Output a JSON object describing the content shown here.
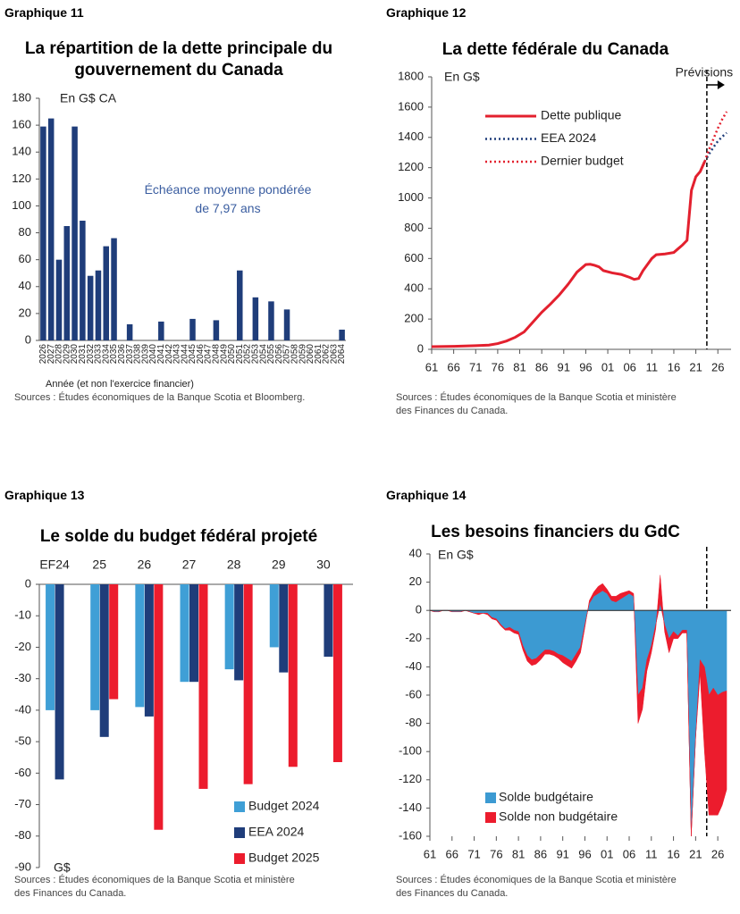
{
  "chart_data": [
    {
      "type": "bar",
      "label": "Graphique 11",
      "title": "La répartition de la dette principale du gouvernement du Canada",
      "unit": "En G$ CA",
      "annotation": "Échéance moyenne pondérée de 7,97 ans",
      "x_label": "Année (et non l'exercice financier)",
      "source": "Sources : Études économiques de la Banque Scotia et Bloomberg.",
      "categories": [
        "2026",
        "2027",
        "2028",
        "2029",
        "2030",
        "2031",
        "2032",
        "2033",
        "2034",
        "2035",
        "2036",
        "2037",
        "2038",
        "2039",
        "2040",
        "2041",
        "2042",
        "2043",
        "2044",
        "2045",
        "2046",
        "2047",
        "2048",
        "2049",
        "2050",
        "2051",
        "2052",
        "2053",
        "2054",
        "2055",
        "2056",
        "2057",
        "2058",
        "2059",
        "2060",
        "2061",
        "2062",
        "2063",
        "2064"
      ],
      "values": [
        159,
        165,
        60,
        85,
        159,
        89,
        48,
        52,
        70,
        76,
        0,
        12,
        0,
        0,
        0,
        14,
        0,
        0,
        0,
        16,
        0,
        0,
        15,
        0,
        0,
        52,
        0,
        32,
        0,
        29,
        0,
        23,
        0,
        0,
        0,
        0,
        0,
        0,
        8
      ],
      "color": "#1f3d7a",
      "ylim": [
        0,
        180
      ],
      "yticks": [
        0,
        20,
        40,
        60,
        80,
        100,
        120,
        140,
        160,
        180
      ]
    },
    {
      "type": "line",
      "label": "Graphique 12",
      "title": "La dette fédérale du Canada",
      "unit": "En G$",
      "source": "Sources : Études économiques de la Banque Scotia et ministère des Finances du Canada.",
      "forecast": {
        "x": 2023.5,
        "label": "Prévisions"
      },
      "legend": "upper left",
      "series": [
        {
          "name": "Dette publique",
          "color": "#e3202e",
          "style": "solid",
          "x": [
            1961,
            1966,
            1971,
            1974,
            1976,
            1978,
            1980,
            1982,
            1984,
            1986,
            1988,
            1990,
            1992,
            1994,
            1996,
            1997,
            1998,
            1999,
            2000,
            2002,
            2004,
            2006,
            2007,
            2008,
            2009,
            2010,
            2011,
            2012,
            2014,
            2016,
            2017,
            2018,
            2019,
            2020,
            2021,
            2022,
            2023
          ],
          "values": [
            18,
            20,
            24,
            28,
            38,
            55,
            80,
            115,
            180,
            245,
            300,
            360,
            430,
            510,
            560,
            562,
            555,
            545,
            520,
            505,
            495,
            475,
            462,
            468,
            520,
            560,
            600,
            625,
            630,
            640,
            665,
            690,
            720,
            1050,
            1140,
            1175,
            1240
          ]
        },
        {
          "name": "EEA 2024",
          "color": "#1f3d7a",
          "style": "dotted",
          "x": [
            2023,
            2024,
            2025,
            2026,
            2027,
            2028
          ],
          "values": [
            1240,
            1290,
            1335,
            1375,
            1405,
            1430
          ]
        },
        {
          "name": "Dernier budget",
          "color": "#e3202e",
          "style": "dotted",
          "x": [
            2023,
            2024,
            2025,
            2026,
            2027,
            2028
          ],
          "values": [
            1240,
            1320,
            1390,
            1460,
            1520,
            1570
          ]
        }
      ],
      "xlim": [
        1961,
        2029
      ],
      "xticks": [
        {
          "value": 1961,
          "label": "61"
        },
        {
          "value": 1966,
          "label": "66"
        },
        {
          "value": 1971,
          "label": "71"
        },
        {
          "value": 1976,
          "label": "76"
        },
        {
          "value": 1981,
          "label": "81"
        },
        {
          "value": 1986,
          "label": "86"
        },
        {
          "value": 1991,
          "label": "91"
        },
        {
          "value": 1996,
          "label": "96"
        },
        {
          "value": 2001,
          "label": "01"
        },
        {
          "value": 2006,
          "label": "06"
        },
        {
          "value": 2011,
          "label": "11"
        },
        {
          "value": 2016,
          "label": "16"
        },
        {
          "value": 2021,
          "label": "21"
        },
        {
          "value": 2026,
          "label": "26"
        }
      ],
      "ylim": [
        0,
        1800
      ],
      "yticks": [
        0,
        200,
        400,
        600,
        800,
        1000,
        1200,
        1400,
        1600,
        1800
      ]
    },
    {
      "type": "bar",
      "label": "Graphique 13",
      "title": "Le solde du budget fédéral projeté",
      "unit": "G$",
      "source": "Sources : Études économiques de la Banque Scotia et ministère des Finances du Canada.",
      "legend": "lower right",
      "categories": [
        "EF24",
        "25",
        "26",
        "27",
        "28",
        "29",
        "30"
      ],
      "series": [
        {
          "name": "Budget 2024",
          "color": "#3f9fd6",
          "values": [
            -40,
            -40,
            -39,
            -31,
            -27,
            -20,
            null
          ]
        },
        {
          "name": "EEA 2024",
          "color": "#1f3d7a",
          "values": [
            -62,
            -48.5,
            -42,
            -31,
            -30.5,
            -28,
            -23
          ]
        },
        {
          "name": "Budget 2025",
          "color": "#ec1c2d",
          "values": [
            null,
            -36.5,
            -78,
            -65,
            -63.5,
            -58,
            -56.5
          ]
        }
      ],
      "ylim": [
        -90,
        0
      ],
      "yticks": [
        0,
        -10,
        -20,
        -30,
        -40,
        -50,
        -60,
        -70,
        -80,
        -90
      ]
    },
    {
      "type": "area",
      "label": "Graphique 14",
      "title": "Les besoins financiers du GdC",
      "unit": "En G$",
      "source": "Sources : Études économiques de la Banque Scotia et ministère des Finances du Canada.",
      "forecast": {
        "x": 2023.5
      },
      "legend": "lower left",
      "x": [
        1961,
        1962,
        1963,
        1964,
        1965,
        1966,
        1967,
        1968,
        1969,
        1970,
        1971,
        1972,
        1973,
        1974,
        1975,
        1976,
        1977,
        1978,
        1979,
        1980,
        1981,
        1982,
        1983,
        1984,
        1985,
        1986,
        1987,
        1988,
        1989,
        1990,
        1991,
        1992,
        1993,
        1994,
        1995,
        1996,
        1997,
        1998,
        1999,
        2000,
        2001,
        2002,
        2003,
        2004,
        2005,
        2006,
        2007,
        2008,
        2009,
        2010,
        2011,
        2012,
        2013,
        2014,
        2015,
        2016,
        2017,
        2018,
        2019,
        2020,
        2021,
        2022,
        2023,
        2024,
        2025,
        2026,
        2027,
        2028
      ],
      "series": [
        {
          "name": "Solde budgétaire",
          "color": "#3c9ad2",
          "values": [
            0,
            -1,
            -1,
            0,
            0,
            -1,
            -1,
            -1,
            0,
            -1,
            -2,
            -2,
            -2,
            -2,
            -5,
            -6,
            -10,
            -13,
            -12,
            -14,
            -15,
            -25,
            -32,
            -35,
            -34,
            -31,
            -28,
            -28,
            -29,
            -31,
            -32,
            -34,
            -36,
            -31,
            -26,
            -10,
            5,
            10,
            12,
            14,
            12,
            7,
            6,
            8,
            10,
            12,
            10,
            -60,
            -55,
            -35,
            -25,
            -10,
            5,
            -10,
            -20,
            -15,
            -18,
            -14,
            -14,
            -160,
            -90,
            -35,
            -40,
            -60,
            -55,
            -60,
            -58,
            -57
          ]
        },
        {
          "name": "Solde non budgétaire",
          "color": "#ec1c2d",
          "values": [
            0,
            0,
            0,
            0,
            0,
            0,
            0,
            0,
            0,
            0,
            0,
            -1,
            0,
            -1,
            -1,
            -1,
            -1,
            -1,
            -2,
            -2,
            -2,
            -3,
            -4,
            -4,
            -4,
            -4,
            -3,
            -3,
            -3,
            -3,
            -5,
            -5,
            -5,
            -5,
            -4,
            -2,
            2,
            3,
            5,
            5,
            3,
            3,
            4,
            4,
            3,
            2,
            2,
            -20,
            -15,
            -8,
            -5,
            -3,
            20,
            -5,
            -10,
            -5,
            -2,
            -2,
            -2,
            0,
            0,
            -10,
            -60,
            -85,
            -90,
            -85,
            -80,
            -70
          ]
        }
      ],
      "xlim": [
        1961,
        2029
      ],
      "xticks": [
        {
          "value": 1961,
          "label": "61"
        },
        {
          "value": 1966,
          "label": "66"
        },
        {
          "value": 1971,
          "label": "71"
        },
        {
          "value": 1976,
          "label": "76"
        },
        {
          "value": 1981,
          "label": "81"
        },
        {
          "value": 1986,
          "label": "86"
        },
        {
          "value": 1991,
          "label": "91"
        },
        {
          "value": 1996,
          "label": "96"
        },
        {
          "value": 2001,
          "label": "01"
        },
        {
          "value": 2006,
          "label": "06"
        },
        {
          "value": 2011,
          "label": "11"
        },
        {
          "value": 2016,
          "label": "16"
        },
        {
          "value": 2021,
          "label": "21"
        },
        {
          "value": 2026,
          "label": "26"
        }
      ],
      "ylim": [
        -160,
        40
      ],
      "yticks": [
        40,
        20,
        0,
        -20,
        -40,
        -60,
        -80,
        -100,
        -120,
        -140,
        -160
      ]
    }
  ]
}
